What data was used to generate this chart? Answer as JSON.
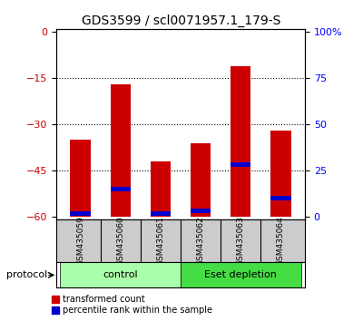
{
  "title": "GDS3599 / scl0071957.1_179-S",
  "samples": [
    "GSM435059",
    "GSM435060",
    "GSM435061",
    "GSM435062",
    "GSM435063",
    "GSM435064"
  ],
  "red_values": [
    -35,
    -17,
    -42,
    -36,
    -11,
    -32
  ],
  "blue_values": [
    -59,
    -51,
    -59,
    -58,
    -43,
    -54
  ],
  "ymin": -60,
  "ymax": 0,
  "left_yticks": [
    0,
    -15,
    -30,
    -45,
    -60
  ],
  "right_tick_positions": [
    0,
    -15,
    -30,
    -45,
    -60
  ],
  "right_tick_labels": [
    "100%",
    "75",
    "50",
    "25",
    "0"
  ],
  "red_color": "#cc0000",
  "blue_color": "#0000cc",
  "bar_width": 0.5,
  "groups": [
    {
      "label": "control",
      "indices": [
        0,
        1,
        2
      ],
      "color": "#aaffaa"
    },
    {
      "label": "Eset depletion",
      "indices": [
        3,
        4,
        5
      ],
      "color": "#44dd44"
    }
  ],
  "protocol_label": "protocol",
  "legend_red": "transformed count",
  "legend_blue": "percentile rank within the sample",
  "background_color": "#ffffff",
  "label_area_color": "#cccccc",
  "title_fontsize": 10,
  "tick_fontsize": 8
}
